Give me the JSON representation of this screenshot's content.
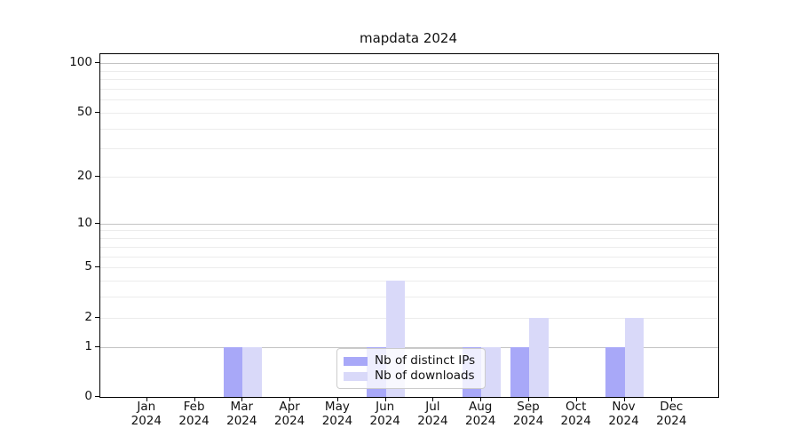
{
  "chart_data": {
    "type": "bar",
    "title": "mapdata 2024",
    "x_tick_labels": [
      {
        "month": "Jan",
        "year": "2024"
      },
      {
        "month": "Feb",
        "year": "2024"
      },
      {
        "month": "Mar",
        "year": "2024"
      },
      {
        "month": "Apr",
        "year": "2024"
      },
      {
        "month": "May",
        "year": "2024"
      },
      {
        "month": "Jun",
        "year": "2024"
      },
      {
        "month": "Jul",
        "year": "2024"
      },
      {
        "month": "Aug",
        "year": "2024"
      },
      {
        "month": "Sep",
        "year": "2024"
      },
      {
        "month": "Oct",
        "year": "2024"
      },
      {
        "month": "Nov",
        "year": "2024"
      },
      {
        "month": "Dec",
        "year": "2024"
      }
    ],
    "series": [
      {
        "name": "Nb of distinct IPs",
        "color": "#a8a8f8",
        "values": [
          0,
          0,
          1,
          0,
          0,
          1,
          0,
          1,
          1,
          0,
          1,
          0
        ]
      },
      {
        "name": "Nb of downloads",
        "color": "#d9d9f9",
        "values": [
          0,
          0,
          1,
          0,
          0,
          4,
          0,
          1,
          2,
          0,
          2,
          0
        ]
      }
    ],
    "y_axis": {
      "scale": "log1p",
      "tick_values": [
        0,
        1,
        2,
        5,
        10,
        20,
        50,
        100
      ],
      "major_grid_values": [
        1,
        10,
        100
      ],
      "minor_grid_values": [
        2,
        3,
        4,
        5,
        6,
        7,
        8,
        9,
        20,
        30,
        40,
        50,
        60,
        70,
        80,
        90
      ],
      "top_value": 100
    },
    "legend": {
      "entries": [
        "Nb of distinct IPs",
        "Nb of downloads"
      ],
      "location": "lower center"
    },
    "colors": {
      "major_grid": "#c3c3c3",
      "minor_grid": "#ececec",
      "spine": "#000000",
      "background": "#ffffff"
    }
  }
}
